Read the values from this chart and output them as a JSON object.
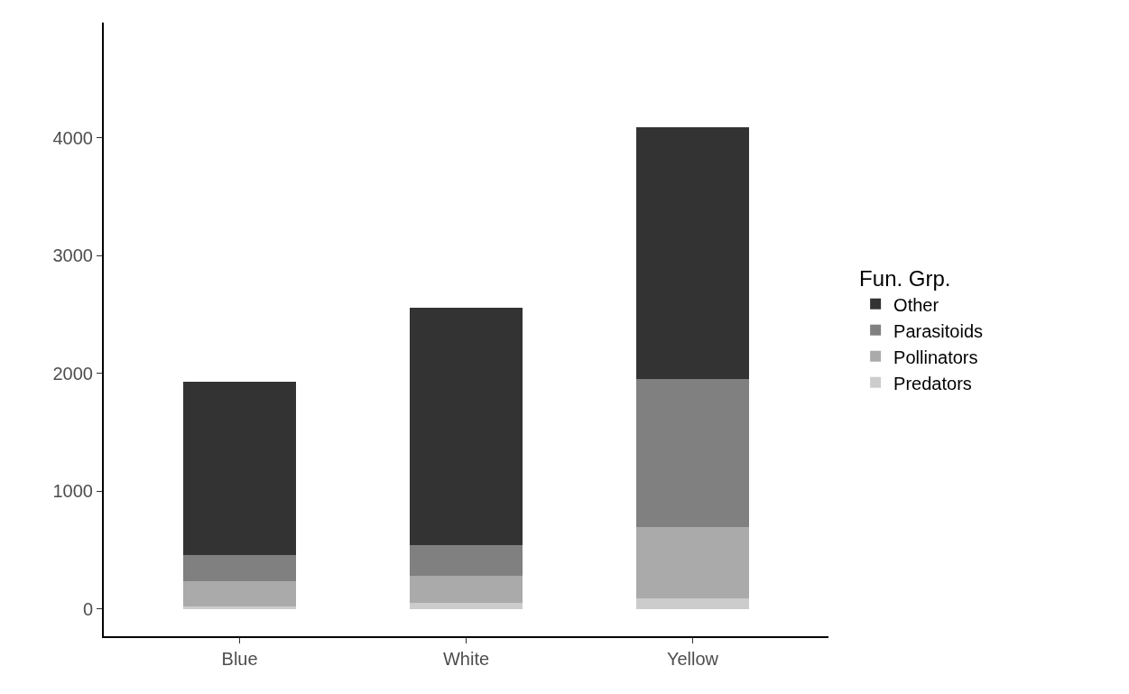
{
  "chart_data": {
    "type": "bar",
    "stacked": true,
    "categories": [
      "Blue",
      "White",
      "Yellow"
    ],
    "legend_title": "Fun. Grp.",
    "legend": "right",
    "series": [
      {
        "name": "Predators",
        "color": "#cccccc",
        "values": [
          20,
          54,
          94
        ]
      },
      {
        "name": "Pollinators",
        "color": "#aaaaaa",
        "values": [
          215,
          226,
          606
        ]
      },
      {
        "name": "Parasitoids",
        "color": "#808080",
        "values": [
          227,
          264,
          1255
        ]
      },
      {
        "name": "Other",
        "color": "#333333",
        "values": [
          1470,
          2017,
          2140
        ]
      }
    ],
    "ylim": [
      -230,
      4980
    ],
    "yticks": [
      0,
      1000,
      2000,
      3000,
      4000
    ]
  }
}
